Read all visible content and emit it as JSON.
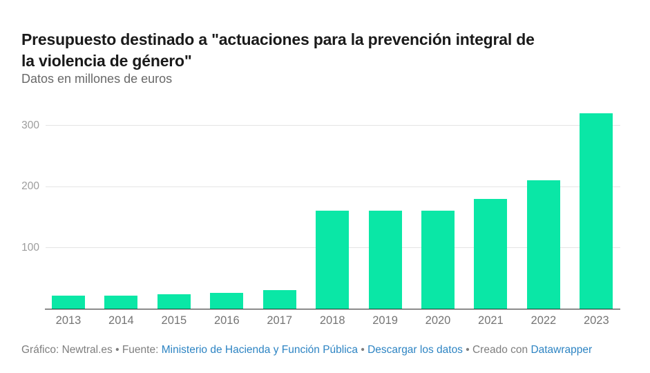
{
  "header": {
    "title_line1": "Presupuesto destinado a \"actuaciones para la prevención integral de",
    "title_line2": "la violencia de género\"",
    "subtitle": "Datos en millones de euros"
  },
  "chart_data": {
    "type": "bar",
    "title": "Presupuesto destinado a \"actuaciones para la prevención integral de la violencia de género\"",
    "subtitle": "Datos en millones de euros",
    "unit": "millones de euros",
    "categories": [
      "2013",
      "2014",
      "2015",
      "2016",
      "2017",
      "2018",
      "2019",
      "2020",
      "2021",
      "2022",
      "2023"
    ],
    "values": [
      21,
      21,
      24,
      26,
      31,
      160,
      160,
      160,
      180,
      210,
      320
    ],
    "yticks": [
      100,
      200,
      300
    ],
    "ylim": [
      0,
      335
    ],
    "xlabel": "",
    "ylabel": "",
    "grid": "horizontal",
    "legend_position": "none",
    "bar_color": "#0ae7a6"
  },
  "colors": {
    "bar": "#0ae7a6",
    "gridline": "#e4e4e4",
    "axis_line": "#262626",
    "link": "#2d84c3"
  },
  "footer": {
    "parts": [
      {
        "text": "Gráfico: Newtral.es",
        "link": false,
        "name": "credit-text"
      },
      {
        "text": " • ",
        "link": false,
        "name": "separator-dot"
      },
      {
        "text": "Fuente: ",
        "link": false,
        "name": "source-label"
      },
      {
        "text": "Ministerio de Hacienda y Función Pública",
        "link": true,
        "name": "source-link"
      },
      {
        "text": " • ",
        "link": false,
        "name": "separator-dot"
      },
      {
        "text": "Descargar los datos",
        "link": true,
        "name": "download-data-link"
      },
      {
        "text": " • ",
        "link": false,
        "name": "separator-dot"
      },
      {
        "text": "Creado con ",
        "link": false,
        "name": "created-with-text"
      },
      {
        "text": "Datawrapper",
        "link": true,
        "name": "datawrapper-link"
      }
    ]
  }
}
